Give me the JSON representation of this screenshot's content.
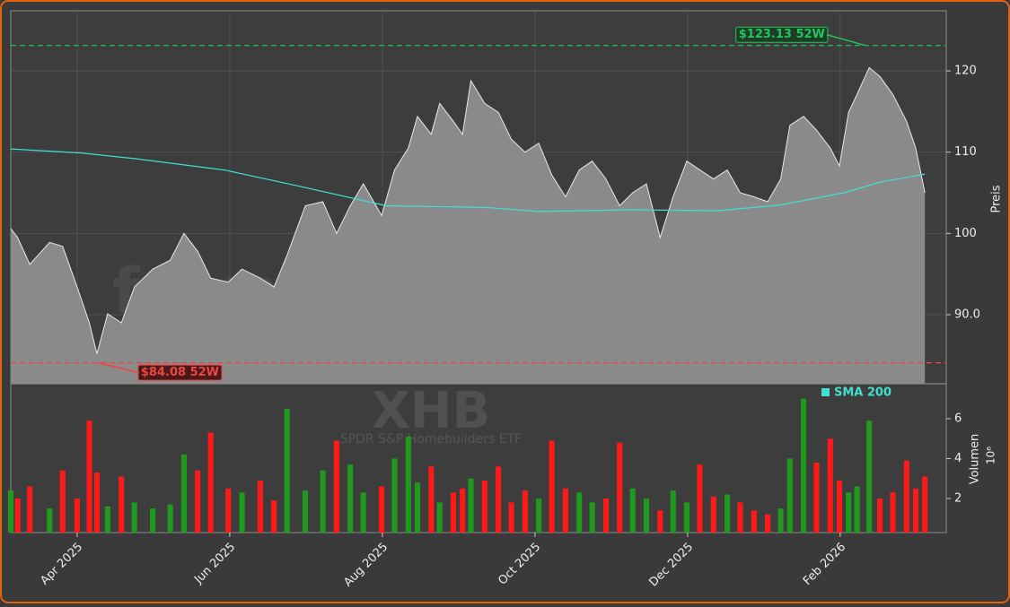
{
  "chart_data": [
    {
      "type": "area",
      "watermark": "forexsignale.trade",
      "symbol": "XHB",
      "subtitle": "SPDR S&P Homebuilders ETF",
      "y_label": "Preis",
      "x": [
        2.13,
        2.22,
        2.38,
        2.64,
        2.81,
        3.0,
        3.16,
        3.26,
        3.4,
        3.58,
        3.75,
        3.99,
        4.22,
        4.4,
        4.58,
        4.75,
        4.98,
        5.16,
        5.4,
        5.58,
        5.75,
        5.99,
        6.22,
        6.4,
        6.58,
        6.75,
        6.99,
        7.16,
        7.34,
        7.46,
        7.64,
        7.75,
        7.93,
        8.05,
        8.16,
        8.34,
        8.52,
        8.69,
        8.87,
        9.05,
        9.22,
        9.4,
        9.58,
        9.75,
        9.93,
        10.11,
        10.28,
        10.46,
        10.64,
        10.81,
        10.99,
        11.16,
        11.34,
        11.52,
        11.69,
        11.87,
        12.05,
        12.22,
        12.34,
        12.52,
        12.69,
        12.87,
        12.99,
        13.11,
        13.22,
        13.38,
        13.52,
        13.69,
        13.87,
        13.99,
        14.11
      ],
      "series": [
        {
          "color": "#8a8a8a",
          "values": [
            100.6,
            99.5,
            96.2,
            98.9,
            98.4,
            93.4,
            89.0,
            85.2,
            90.1,
            89.0,
            93.4,
            95.6,
            96.7,
            100.0,
            97.8,
            94.5,
            94.0,
            95.6,
            94.5,
            93.4,
            97.3,
            103.4,
            103.9,
            100.0,
            103.4,
            106.1,
            102.2,
            107.8,
            110.5,
            114.4,
            112.2,
            116.0,
            113.8,
            112.2,
            118.8,
            116.0,
            114.9,
            111.6,
            110.0,
            111.1,
            107.2,
            104.5,
            107.8,
            108.9,
            106.7,
            103.4,
            105.0,
            106.1,
            99.5,
            104.5,
            108.9,
            107.8,
            106.7,
            107.8,
            105.0,
            104.5,
            103.9,
            106.7,
            113.3,
            114.4,
            112.7,
            110.5,
            108.3,
            114.9,
            117.1,
            120.4,
            119.3,
            117.1,
            113.8,
            110.5,
            105.0
          ]
        },
        {
          "name": "SMA 200",
          "color": "#40e0d0",
          "x": [
            2.13,
            3.05,
            3.75,
            4.93,
            5.87,
            7.05,
            8.34,
            9.05,
            10.22,
            11.4,
            12.22,
            13.05,
            13.52,
            14.11
          ],
          "values": [
            110.4,
            109.9,
            109.2,
            107.8,
            105.9,
            103.4,
            103.2,
            102.7,
            102.9,
            102.8,
            103.5,
            105.0,
            106.3,
            107.3
          ]
        }
      ],
      "annotations": [
        {
          "text": "$123.13 52W",
          "value": 123.13,
          "x": 13.33,
          "color": "#22c55e"
        },
        {
          "text": "$84.08 52W",
          "value": 84.08,
          "x": 3.27,
          "color": "#ef4444"
        }
      ],
      "xlim": [
        2.13,
        14.39
      ],
      "xticks": [
        {
          "value": 3,
          "label": "Apr 2025"
        },
        {
          "value": 5,
          "label": "Jun 2025"
        },
        {
          "value": 7,
          "label": "Aug 2025"
        },
        {
          "value": 9,
          "label": "Oct 2025"
        },
        {
          "value": 11,
          "label": "Dec 2025"
        },
        {
          "value": 13,
          "label": "Feb 2026"
        }
      ],
      "ylim": [
        81.5,
        127.4
      ],
      "yticks": [
        {
          "value": 90,
          "label": "90.0"
        },
        100,
        110,
        120
      ],
      "grid": true
    },
    {
      "type": "bar",
      "y_label": "Volumen",
      "y_unit": "10⁶",
      "up_color": "#1f9a1f",
      "down_color": "#ff1a1a",
      "values": [
        2.4,
        2.0,
        2.6,
        1.5,
        3.4,
        2.0,
        5.9,
        3.3,
        1.6,
        3.1,
        1.8,
        1.5,
        1.7,
        4.2,
        3.4,
        5.3,
        2.5,
        2.3,
        2.9,
        1.9,
        6.5,
        2.4,
        3.4,
        4.9,
        3.7,
        2.3,
        2.6,
        4.0,
        5.1,
        2.8,
        3.6,
        1.8,
        2.3,
        2.5,
        3.0,
        2.9,
        3.6,
        1.8,
        2.4,
        2.0,
        4.9,
        2.5,
        2.3,
        1.8,
        2.0,
        4.8,
        2.5,
        2.0,
        1.4,
        2.4,
        1.8,
        3.7,
        2.1,
        2.2,
        1.8,
        1.4,
        1.2,
        1.5,
        4.0,
        7.0,
        3.8,
        5.0,
        2.9,
        2.3,
        2.6,
        5.9,
        2.0,
        2.3,
        3.9,
        2.5,
        3.1
      ],
      "ylim": [
        0.29,
        7.75
      ],
      "yticks": [
        2,
        4,
        6
      ]
    }
  ]
}
